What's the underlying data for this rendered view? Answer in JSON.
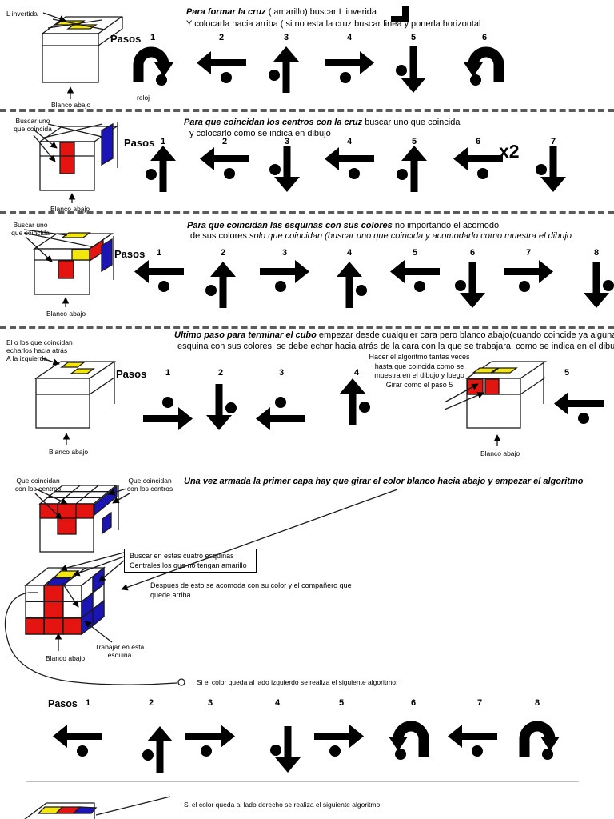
{
  "colors": {
    "red": "#e41410",
    "yellow": "#f2e60c",
    "blue": "#1a15b4"
  },
  "s1": {
    "pointer_label": "L invertida",
    "bottom_label": "Blanco abajo",
    "pasos_label": "Pasos",
    "title_em": "Para formar la cruz",
    "title_rest": " ( amarillo)  buscar L inverida",
    "title_line2": "Y colocarla hacia arriba ( si no esta la cruz buscar linea y ponerla horizontal",
    "step_note": "reloj",
    "steps": [
      {
        "n": "1",
        "icon": "rotate-cw"
      },
      {
        "n": "2",
        "icon": "left",
        "dot": "below"
      },
      {
        "n": "3",
        "icon": "up",
        "dot": "left"
      },
      {
        "n": "4",
        "icon": "right",
        "dot": "below"
      },
      {
        "n": "5",
        "icon": "down",
        "dot": "left"
      },
      {
        "n": "6",
        "icon": "rotate-ccw"
      }
    ]
  },
  "s2": {
    "pointer_label": "Buscar uno\nque coincida",
    "bottom_label": "Blanco abajo",
    "pasos_label": "Pasos",
    "title_em": "Para que coincidan los centros con la cruz",
    "title_rest": " buscar uno que coincida",
    "title_line2": "y colocarlo como se indica en dibujo",
    "x2_label": "x2",
    "steps": [
      {
        "n": "1",
        "icon": "up",
        "dot": "left"
      },
      {
        "n": "2",
        "icon": "left",
        "dot": "below"
      },
      {
        "n": "3",
        "icon": "down",
        "dot": "left"
      },
      {
        "n": "4",
        "icon": "left",
        "dot": "below"
      },
      {
        "n": "5",
        "icon": "up",
        "dot": "left"
      },
      {
        "n": "6",
        "icon": "left",
        "dot": "below"
      },
      {
        "n": "7",
        "icon": "down",
        "dot": "left"
      }
    ]
  },
  "s3": {
    "pointer_label": "Buscar uno\nque coincida",
    "bottom_label": "Blanco abajo",
    "pasos_label": "Pasos",
    "title_em": "Para que coincidan las esquinas con sus colores",
    "title_rest": " no importando el acomodo",
    "title_line2_plain": "de sus colores ",
    "title_line2_italic": "solo que coincidan (buscar uno que coincida y acomodarlo como muestra el dibujo",
    "steps": [
      {
        "n": "1",
        "icon": "left",
        "dot": "below"
      },
      {
        "n": "2",
        "icon": "up",
        "dot": "left"
      },
      {
        "n": "3",
        "icon": "right",
        "dot": "below"
      },
      {
        "n": "4",
        "icon": "up",
        "dot": "right"
      },
      {
        "n": "5",
        "icon": "left",
        "dot": "below"
      },
      {
        "n": "6",
        "icon": "down",
        "dot": "left"
      },
      {
        "n": "7",
        "icon": "right",
        "dot": "below"
      },
      {
        "n": "8",
        "icon": "down",
        "dot": "right"
      }
    ]
  },
  "s4": {
    "pointer_label": "El o los que coincidan\necharlos hacia atrás\nA la izquierda",
    "bottom_label": "Blanco abajo",
    "bottom_label2": "Blanco abajo",
    "pasos_label": "Pasos",
    "title_em": "Ultimo paso para terminar el cubo",
    "title_rest": " empezar desde cualquier cara pero blanco abajo(cuando coincide  ya alguna",
    "title_line2": "esquina con sus colores, se debe echar hacia atrás de la cara con la que se trabajara, como se indica en el dibujo",
    "note": "Hacer el algoritmo tantas veces\nhasta que coincida como se\nmuestra en el dibujo y luego\nGirar como el paso 5",
    "steps": [
      {
        "n": "1",
        "icon": "right",
        "dot": "above"
      },
      {
        "n": "2",
        "icon": "down",
        "dot": "right"
      },
      {
        "n": "3",
        "icon": "left",
        "dot": "above"
      },
      {
        "n": "4",
        "icon": "up",
        "dot": "right"
      },
      {
        "n": "5",
        "icon": "left",
        "dot": "below"
      }
    ]
  },
  "s5": {
    "pointer_label_left": "Que coincidan\ncon los centros",
    "pointer_label_right": "Que coincidan\ncon los centros",
    "title_em": "Una vez armada la primer capa hay que girar el color blanco hacia abajo y empezar el algoritmo",
    "box_note": "Buscar en estas cuatro esquinas\nCentrales los que no tengan amarillo",
    "note": "Despues de esto se acomoda con su color y el compañero que\nquede arriba",
    "corner_label": "Trabajar en esta\nesquina",
    "bottom_label": "Blanco abajo",
    "algo_left_caption": "Si el color queda al lado izquierdo se realiza el siguiente algoritmo:",
    "algo_right_caption": "Si el color queda al lado derecho se realiza el siguiente algoritmo:",
    "pasos_label": "Pasos",
    "steps": [
      {
        "n": "1",
        "icon": "left",
        "dot": "below"
      },
      {
        "n": "2",
        "icon": "up",
        "dot": "left"
      },
      {
        "n": "3",
        "icon": "right",
        "dot": "below"
      },
      {
        "n": "4",
        "icon": "down",
        "dot": "left"
      },
      {
        "n": "5",
        "icon": "right",
        "dot": "below"
      },
      {
        "n": "6",
        "icon": "rotate-ccw"
      },
      {
        "n": "7",
        "icon": "left",
        "dot": "below"
      },
      {
        "n": "8",
        "icon": "rotate-cw"
      }
    ]
  }
}
